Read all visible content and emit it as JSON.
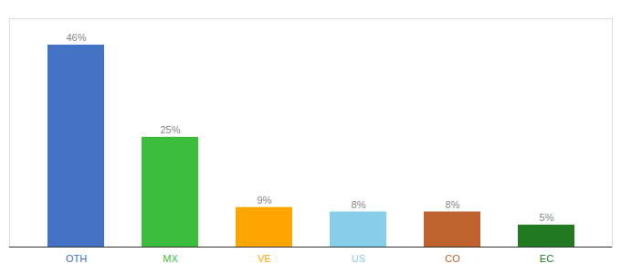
{
  "chart_data": {
    "type": "bar",
    "categories": [
      "OTH",
      "MX",
      "VE",
      "US",
      "CO",
      "EC"
    ],
    "values": [
      46,
      25,
      9,
      8,
      8,
      5
    ],
    "value_labels": [
      "46%",
      "25%",
      "9%",
      "8%",
      "8%",
      "5%"
    ],
    "colors": [
      "#4472C4",
      "#3DBD3D",
      "#FFA500",
      "#87CEEB",
      "#C0622B",
      "#217A21"
    ],
    "ylim": [
      0,
      52
    ],
    "data_labels": true,
    "tick_labels": "x",
    "grid": false
  }
}
